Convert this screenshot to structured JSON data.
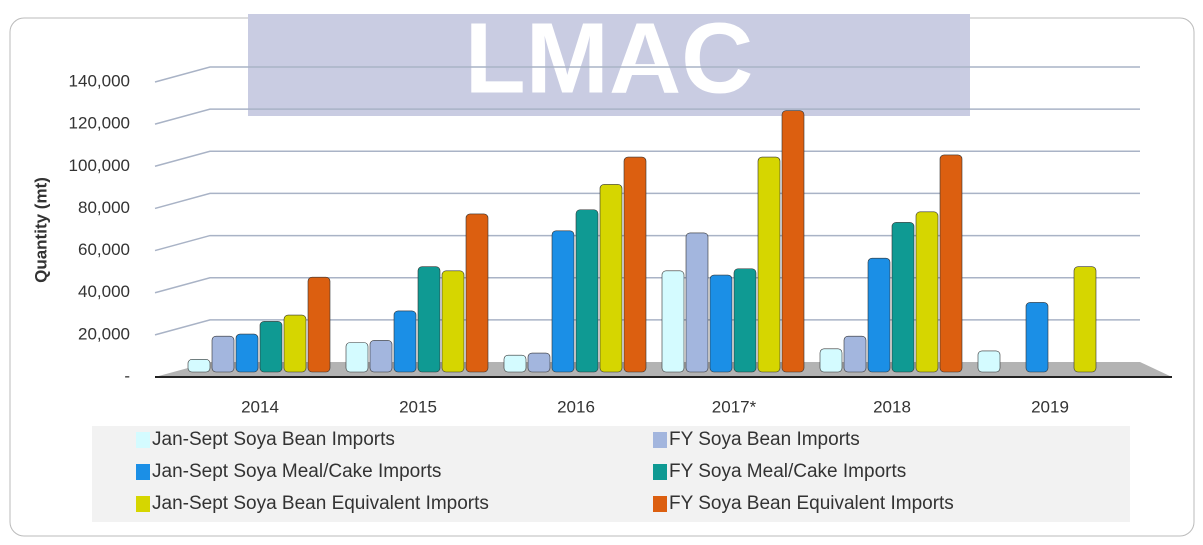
{
  "chart_data": {
    "type": "bar",
    "watermark": "LMAC",
    "y_label": "Quantity (mt)",
    "categories": [
      "2014",
      "2015",
      "2016",
      "2017*",
      "2018",
      "2019"
    ],
    "series": [
      {
        "name": "Jan-Sept Soya Bean Imports",
        "color": "#d4fbff",
        "values": [
          6000,
          14000,
          8000,
          48000,
          11000,
          10000
        ]
      },
      {
        "name": "FY Soya Bean Imports",
        "color": "#a3b6de",
        "values": [
          17000,
          15000,
          9000,
          66000,
          17000,
          null
        ]
      },
      {
        "name": "Jan-Sept Soya Meal/Cake Imports",
        "color": "#1b8fe6",
        "values": [
          18000,
          29000,
          67000,
          46000,
          54000,
          33000
        ]
      },
      {
        "name": "FY Soya Meal/Cake Imports",
        "color": "#0f9a93",
        "values": [
          24000,
          50000,
          77000,
          49000,
          71000,
          null
        ]
      },
      {
        "name": "Jan-Sept Soya Bean Equivalent Imports",
        "color": "#d6d600",
        "values": [
          27000,
          48000,
          89000,
          102000,
          76000,
          50000
        ]
      },
      {
        "name": "FY Soya Bean Equivalent Imports",
        "color": "#dc5f10",
        "values": [
          45000,
          75000,
          102000,
          124000,
          103000,
          null
        ]
      }
    ],
    "ylim": [
      0,
      140000
    ],
    "yticks": [
      {
        "value": 0,
        "label": "-"
      },
      {
        "value": 20000,
        "label": "20,000"
      },
      {
        "value": 40000,
        "label": "40,000"
      },
      {
        "value": 60000,
        "label": "60,000"
      },
      {
        "value": 80000,
        "label": "80,000"
      },
      {
        "value": 100000,
        "label": "100,000"
      },
      {
        "value": 120000,
        "label": "120,000"
      },
      {
        "value": 140000,
        "label": "140,000"
      }
    ],
    "grid": true
  }
}
